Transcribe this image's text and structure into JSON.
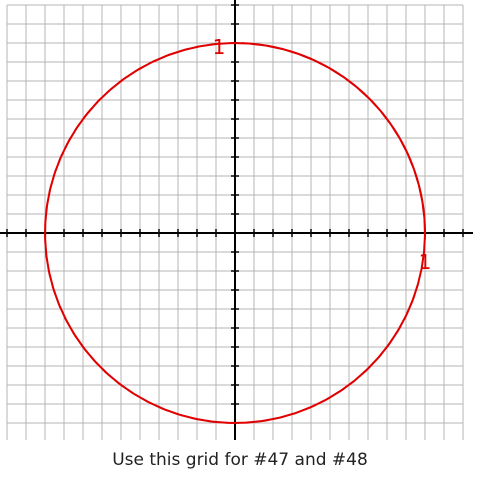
{
  "figure": {
    "grid_cells_per_axis": 24,
    "circle_radius_units": 10,
    "colors": {
      "grid": "#b4b4b4",
      "axis": "#000000",
      "circle": "#e00000",
      "label": "#e00000",
      "background": "#ffffff"
    }
  },
  "labels": {
    "top": "1",
    "right": "1"
  },
  "caption": "Use this grid for #47 and #48"
}
